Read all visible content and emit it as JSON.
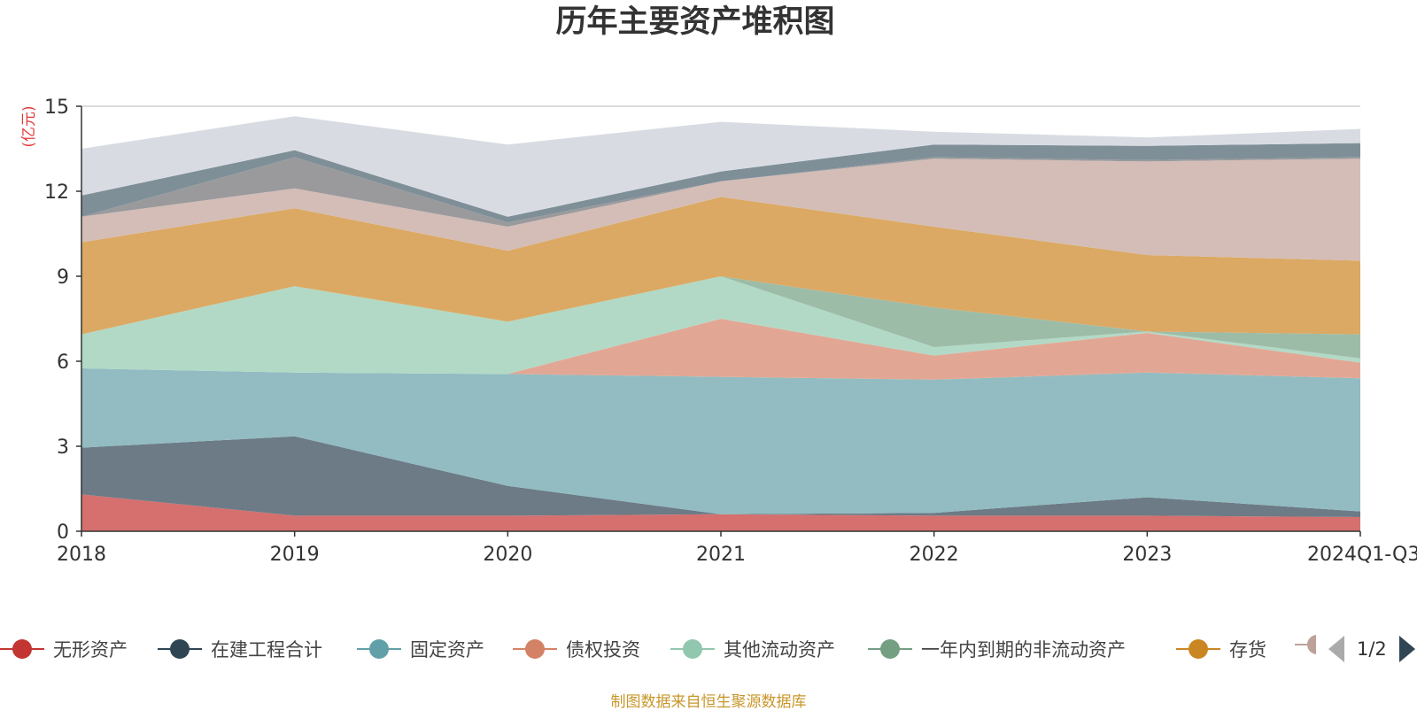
{
  "chart_data": {
    "type": "area",
    "title": "历年主要资产堆积图",
    "ylabel": "(亿元)",
    "xlabel": "",
    "ylim": [
      0,
      15
    ],
    "yticks": [
      0,
      3,
      6,
      9,
      12,
      15
    ],
    "grid": true,
    "stacked": true,
    "categories": [
      "2018",
      "2019",
      "2020",
      "2021",
      "2022",
      "2023",
      "2024Q1-Q3"
    ],
    "series": [
      {
        "name": "无形资产",
        "color": "#c23531",
        "area_color": "#d5706f",
        "values": [
          1.3,
          0.55,
          0.55,
          0.6,
          0.55,
          0.55,
          0.5
        ]
      },
      {
        "name": "在建工程合计",
        "color": "#2f4554",
        "area_color": "#6c7b86",
        "values": [
          1.65,
          2.8,
          1.05,
          0.0,
          0.1,
          0.65,
          0.2
        ]
      },
      {
        "name": "固定资产",
        "color": "#61a0a8",
        "area_color": "#92bcc2",
        "values": [
          2.8,
          2.25,
          3.95,
          4.85,
          4.7,
          4.4,
          4.7
        ]
      },
      {
        "name": "债权投资",
        "color": "#d48265",
        "area_color": "#e2a794",
        "values": [
          0.0,
          0.0,
          0.0,
          2.05,
          0.85,
          1.4,
          0.55
        ]
      },
      {
        "name": "其他流动资产",
        "color": "#91c7ae",
        "area_color": "#b2d9c6",
        "values": [
          1.2,
          3.05,
          1.85,
          1.5,
          0.3,
          0.05,
          0.15
        ]
      },
      {
        "name": "一年内到期的非流动资产",
        "color": "#749f83",
        "area_color": "#9dbca8",
        "values": [
          0.0,
          0.0,
          0.0,
          0.0,
          1.4,
          0.0,
          0.85
        ]
      },
      {
        "name": "存货",
        "color": "#ca8622",
        "area_color": "#dba963",
        "values": [
          3.25,
          2.75,
          2.5,
          2.8,
          2.85,
          2.7,
          2.6
        ]
      },
      {
        "name": "",
        "color": "#bda29a",
        "area_color": "#d4bdb7",
        "values": [
          0.9,
          0.7,
          0.85,
          0.55,
          2.4,
          3.3,
          3.6
        ]
      },
      {
        "name": "",
        "color": "#6e7074",
        "area_color": "#9a9a9d",
        "values": [
          0.0,
          1.1,
          0.15,
          0.0,
          0.05,
          0.05,
          0.05
        ]
      },
      {
        "name": "",
        "color": "#546570",
        "area_color": "#7f8f98",
        "values": [
          0.75,
          0.25,
          0.2,
          0.35,
          0.45,
          0.5,
          0.5
        ]
      },
      {
        "name": "",
        "color": "#c4ccd3",
        "area_color": "#d8dce2",
        "values": [
          1.65,
          1.2,
          2.55,
          1.75,
          0.45,
          0.3,
          0.5
        ]
      }
    ]
  },
  "legend": {
    "page_text": "1/2"
  },
  "source_text": "制图数据来自恒生聚源数据库"
}
